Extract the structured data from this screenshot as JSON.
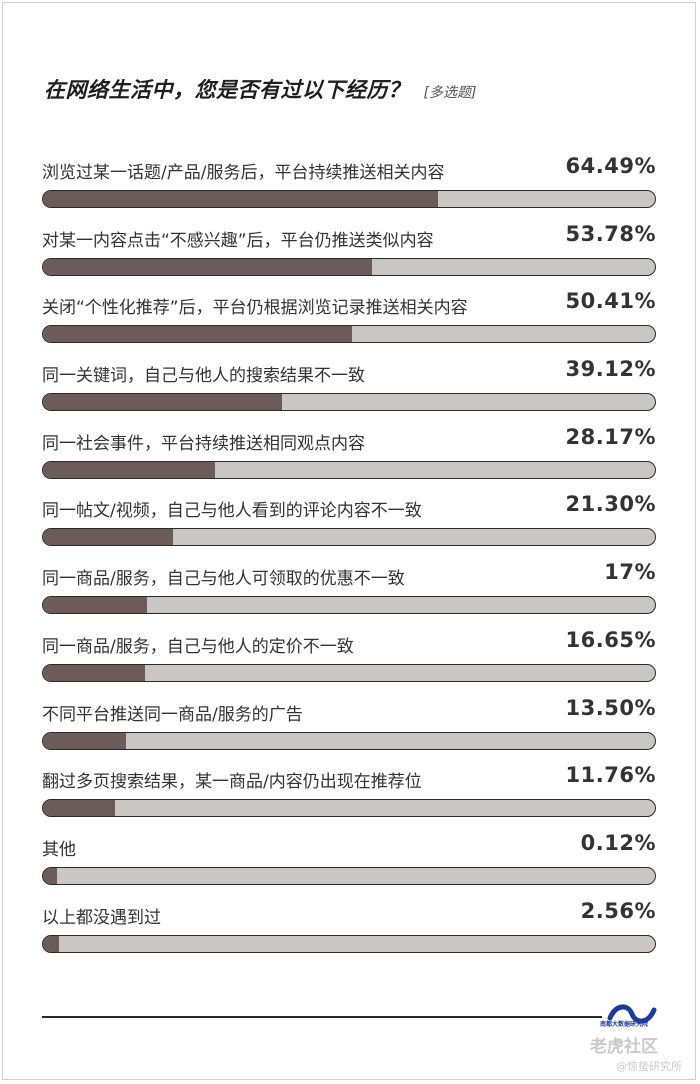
{
  "title": "在网络生活中，您是否有过以下经历？",
  "tag": "[多选题]",
  "chart_data": {
    "type": "bar",
    "orientation": "horizontal",
    "title": "在网络生活中，您是否有过以下经历？",
    "xlim": [
      0,
      100
    ],
    "categories": [
      "浏览过某一话题/产品/服务后，平台持续推送相关内容",
      "对某一内容点击“不感兴趣”后，平台仍推送类似内容",
      "关闭“个性化推荐”后，平台仍根据浏览记录推送相关内容",
      "同一关键词，自己与他人的搜索结果不一致",
      "同一社会事件，平台持续推送相同观点内容",
      "同一帖文/视频，自己与他人看到的评论内容不一致",
      "同一商品/服务，自己与他人可领取的优惠不一致",
      "同一商品/服务，自己与他人的定价不一致",
      "不同平台推送同一商品/服务的广告",
      "翻过多页搜索结果，某一商品/内容仍出现在推荐位",
      "其他",
      "以上都没遇到过"
    ],
    "values": [
      64.49,
      53.78,
      50.41,
      39.12,
      28.17,
      21.3,
      17,
      16.65,
      13.5,
      11.76,
      0.12,
      2.56
    ],
    "value_labels": [
      "64.49%",
      "53.78%",
      "50.41%",
      "39.12%",
      "28.17%",
      "21.30%",
      "17%",
      "16.65%",
      "13.50%",
      "11.76%",
      "0.12%",
      "2.56%"
    ],
    "colors": {
      "fill": "#6b5b5b",
      "track": "#c9c6c6",
      "outline": "#2a2a2a"
    }
  },
  "footer": {
    "logo_text": "南都大数据研究院",
    "watermark_main": "老虎社区",
    "watermark_sub": "@惊蛰研究所"
  }
}
